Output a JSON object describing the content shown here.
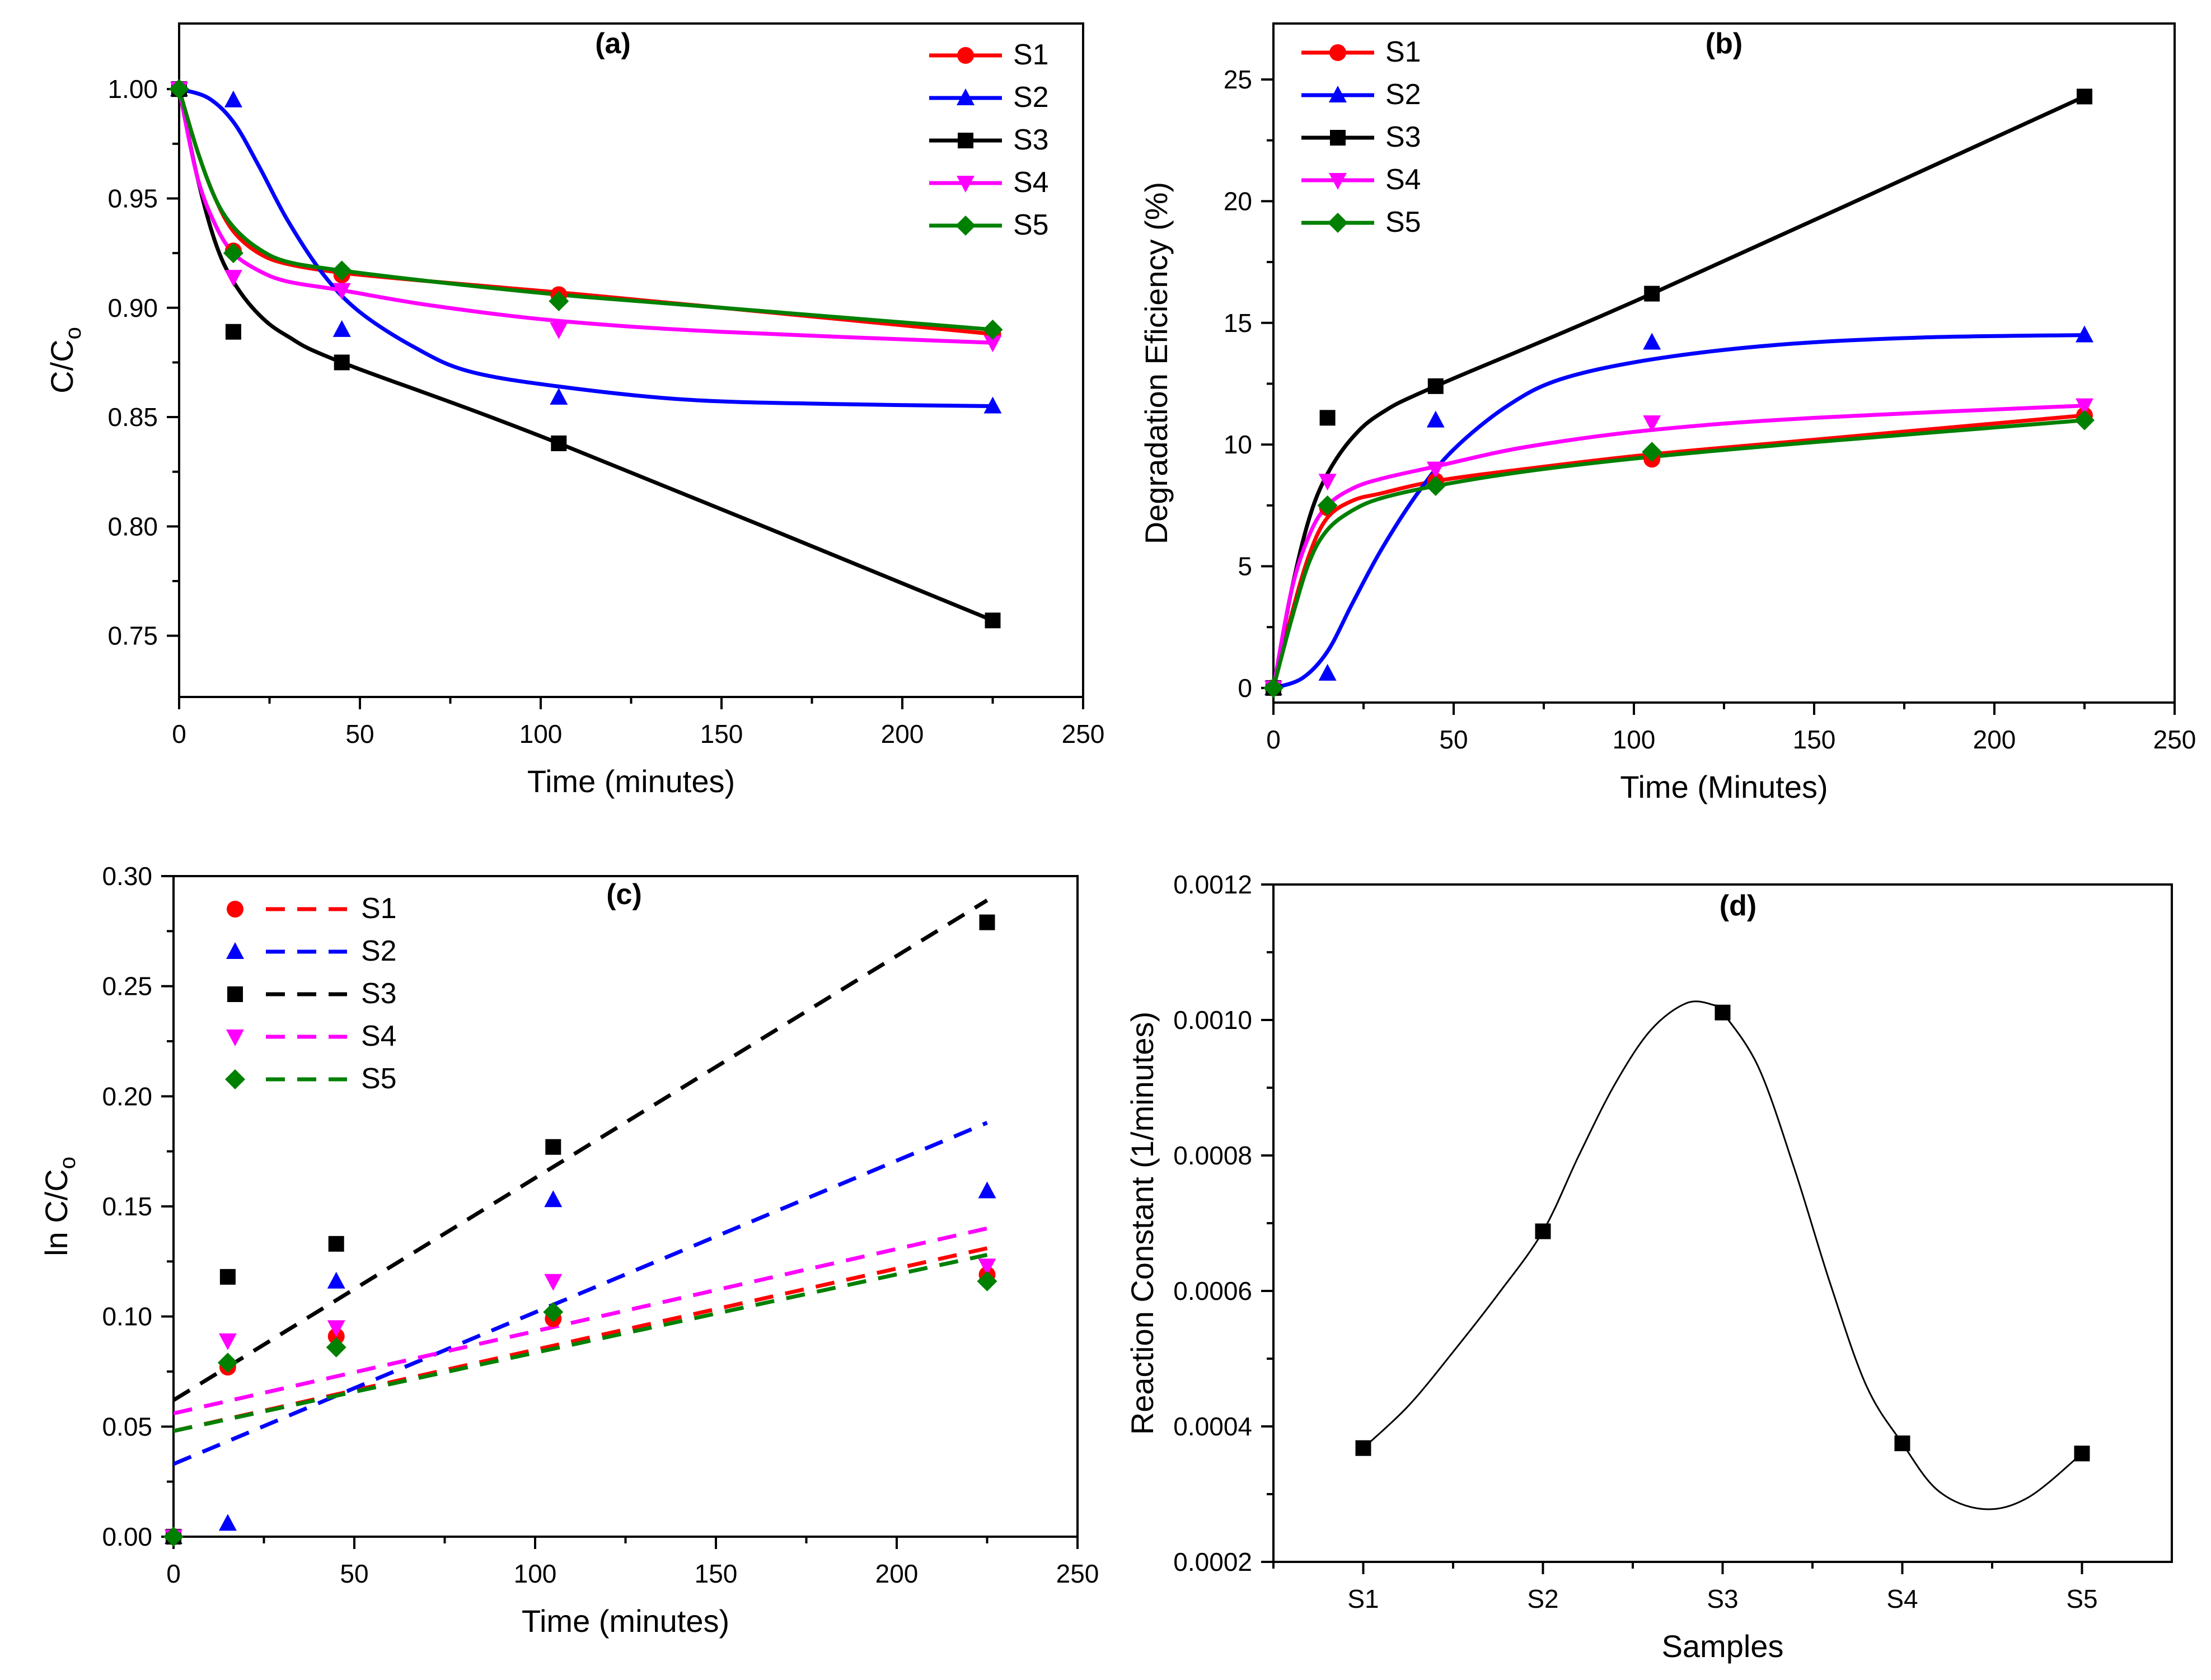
{
  "chart_data": [
    {
      "id": "a",
      "type": "line",
      "title": "(a)",
      "xlabel": "Time (minutes)",
      "ylabel": "C/C",
      "ylabel_sub": "o",
      "xlim": [
        0,
        250
      ],
      "ylim": [
        0.722,
        1.03
      ],
      "xticks": [
        0,
        50,
        100,
        150,
        200,
        250
      ],
      "xtick_labels": [
        "0",
        "50",
        "100",
        "150",
        "200",
        "250"
      ],
      "yticks": [
        0.75,
        0.8,
        0.85,
        0.9,
        0.95,
        1.0
      ],
      "ytick_labels": [
        "0.75",
        "0.80",
        "0.85",
        "0.90",
        "0.95",
        "1.00"
      ],
      "legend": "top-right",
      "series": [
        {
          "name": "S1",
          "color": "#ff0000",
          "marker": "circle",
          "x": [
            0,
            15,
            45,
            105,
            225
          ],
          "y": [
            1.0,
            0.926,
            0.915,
            0.906,
            0.888
          ],
          "fit": [
            [
              0,
              1.0
            ],
            [
              5,
              0.972
            ],
            [
              10,
              0.95
            ],
            [
              15,
              0.935
            ],
            [
              22,
              0.925
            ],
            [
              30,
              0.92
            ],
            [
              45,
              0.916
            ],
            [
              70,
              0.912
            ],
            [
              105,
              0.907
            ],
            [
              150,
              0.9
            ],
            [
              225,
              0.888
            ]
          ]
        },
        {
          "name": "S2",
          "color": "#0000ff",
          "marker": "triangle-up",
          "x": [
            0,
            15,
            45,
            105,
            225
          ],
          "y": [
            1.0,
            0.995,
            0.89,
            0.859,
            0.855
          ],
          "fit": [
            [
              0,
              1.0
            ],
            [
              8,
              0.996
            ],
            [
              15,
              0.985
            ],
            [
              22,
              0.965
            ],
            [
              30,
              0.94
            ],
            [
              40,
              0.915
            ],
            [
              50,
              0.898
            ],
            [
              65,
              0.882
            ],
            [
              80,
              0.871
            ],
            [
              105,
              0.864
            ],
            [
              140,
              0.858
            ],
            [
              180,
              0.856
            ],
            [
              225,
              0.855
            ]
          ]
        },
        {
          "name": "S3",
          "color": "#000000",
          "marker": "square",
          "x": [
            0,
            15,
            45,
            105,
            225
          ],
          "y": [
            1.0,
            0.889,
            0.875,
            0.838,
            0.757
          ],
          "fit": [
            [
              0,
              1.0
            ],
            [
              5,
              0.96
            ],
            [
              10,
              0.93
            ],
            [
              15,
              0.912
            ],
            [
              22,
              0.897
            ],
            [
              30,
              0.887
            ],
            [
              45,
              0.875
            ],
            [
              105,
              0.838
            ],
            [
              225,
              0.757
            ]
          ]
        },
        {
          "name": "S4",
          "color": "#ff00ff",
          "marker": "triangle-down",
          "x": [
            0,
            15,
            45,
            105,
            225
          ],
          "y": [
            1.0,
            0.914,
            0.908,
            0.89,
            0.884
          ],
          "fit": [
            [
              0,
              1.0
            ],
            [
              5,
              0.96
            ],
            [
              10,
              0.938
            ],
            [
              15,
              0.925
            ],
            [
              22,
              0.917
            ],
            [
              30,
              0.912
            ],
            [
              45,
              0.908
            ],
            [
              70,
              0.901
            ],
            [
              105,
              0.894
            ],
            [
              150,
              0.889
            ],
            [
              225,
              0.884
            ]
          ]
        },
        {
          "name": "S5",
          "color": "#008000",
          "marker": "diamond",
          "x": [
            0,
            15,
            45,
            105,
            225
          ],
          "y": [
            1.0,
            0.925,
            0.917,
            0.903,
            0.89
          ],
          "fit": [
            [
              0,
              1.0
            ],
            [
              5,
              0.972
            ],
            [
              10,
              0.95
            ],
            [
              15,
              0.937
            ],
            [
              22,
              0.927
            ],
            [
              30,
              0.921
            ],
            [
              45,
              0.917
            ],
            [
              70,
              0.912
            ],
            [
              105,
              0.906
            ],
            [
              150,
              0.9
            ],
            [
              225,
              0.89
            ]
          ]
        }
      ]
    },
    {
      "id": "b",
      "type": "line",
      "title": "(b)",
      "xlabel": "Time (Minutes)",
      "ylabel": "Degradation Eficiency (%)",
      "xlim": [
        0,
        250
      ],
      "ylim": [
        -0.6,
        27.3
      ],
      "xticks": [
        0,
        50,
        100,
        150,
        200,
        250
      ],
      "xtick_labels": [
        "0",
        "50",
        "100",
        "150",
        "200",
        "250"
      ],
      "yticks": [
        0,
        5,
        10,
        15,
        20,
        25
      ],
      "ytick_labels": [
        "0",
        "5",
        "10",
        "15",
        "20",
        "25"
      ],
      "legend": "top-left",
      "series": [
        {
          "name": "S1",
          "color": "#ff0000",
          "marker": "circle",
          "x": [
            0,
            15,
            45,
            105,
            225
          ],
          "y": [
            0,
            7.4,
            8.5,
            9.4,
            11.2
          ],
          "fit": [
            [
              0,
              0
            ],
            [
              5,
              3.0
            ],
            [
              10,
              5.5
            ],
            [
              15,
              7.0
            ],
            [
              22,
              7.7
            ],
            [
              30,
              8.0
            ],
            [
              45,
              8.5
            ],
            [
              70,
              9.0
            ],
            [
              105,
              9.6
            ],
            [
              150,
              10.2
            ],
            [
              225,
              11.2
            ]
          ]
        },
        {
          "name": "S2",
          "color": "#0000ff",
          "marker": "triangle-up",
          "x": [
            0,
            15,
            45,
            105,
            225
          ],
          "y": [
            0,
            0.6,
            11.0,
            14.2,
            14.5
          ],
          "fit": [
            [
              0,
              0
            ],
            [
              8,
              0.4
            ],
            [
              15,
              1.5
            ],
            [
              22,
              3.5
            ],
            [
              30,
              5.7
            ],
            [
              40,
              8.0
            ],
            [
              50,
              9.8
            ],
            [
              65,
              11.6
            ],
            [
              80,
              12.7
            ],
            [
              105,
              13.5
            ],
            [
              140,
              14.1
            ],
            [
              180,
              14.4
            ],
            [
              225,
              14.5
            ]
          ]
        },
        {
          "name": "S3",
          "color": "#000000",
          "marker": "square",
          "x": [
            0,
            15,
            45,
            105,
            225
          ],
          "y": [
            0,
            11.1,
            12.4,
            16.2,
            24.3
          ],
          "fit": [
            [
              0,
              0
            ],
            [
              5,
              4.0
            ],
            [
              10,
              7.0
            ],
            [
              15,
              8.8
            ],
            [
              22,
              10.3
            ],
            [
              30,
              11.3
            ],
            [
              45,
              12.4
            ],
            [
              105,
              16.2
            ],
            [
              225,
              24.3
            ]
          ]
        },
        {
          "name": "S4",
          "color": "#ff00ff",
          "marker": "triangle-down",
          "x": [
            0,
            15,
            45,
            105,
            225
          ],
          "y": [
            0,
            8.5,
            9.0,
            10.9,
            11.6
          ],
          "fit": [
            [
              0,
              0
            ],
            [
              5,
              4.0
            ],
            [
              10,
              6.3
            ],
            [
              15,
              7.5
            ],
            [
              22,
              8.2
            ],
            [
              30,
              8.6
            ],
            [
              45,
              9.1
            ],
            [
              70,
              9.9
            ],
            [
              105,
              10.6
            ],
            [
              150,
              11.1
            ],
            [
              225,
              11.6
            ]
          ]
        },
        {
          "name": "S5",
          "color": "#008000",
          "marker": "diamond",
          "x": [
            0,
            15,
            45,
            105,
            225
          ],
          "y": [
            0,
            7.5,
            8.3,
            9.7,
            11.0
          ],
          "fit": [
            [
              0,
              0
            ],
            [
              5,
              2.8
            ],
            [
              10,
              5.2
            ],
            [
              15,
              6.5
            ],
            [
              22,
              7.3
            ],
            [
              30,
              7.8
            ],
            [
              45,
              8.3
            ],
            [
              70,
              8.9
            ],
            [
              105,
              9.5
            ],
            [
              150,
              10.1
            ],
            [
              225,
              11.0
            ]
          ]
        }
      ]
    },
    {
      "id": "c",
      "type": "scatter",
      "title": "(c)",
      "xlabel": "Time (minutes)",
      "ylabel": "ln C/C",
      "ylabel_sub": "o",
      "xlim": [
        0,
        250
      ],
      "ylim": [
        0,
        0.3
      ],
      "xticks": [
        0,
        50,
        100,
        150,
        200,
        250
      ],
      "xtick_labels": [
        "0",
        "50",
        "100",
        "150",
        "200",
        "250"
      ],
      "yticks": [
        0.0,
        0.05,
        0.1,
        0.15,
        0.2,
        0.25,
        0.3
      ],
      "ytick_labels": [
        "0.00",
        "0.05",
        "0.10",
        "0.15",
        "0.20",
        "0.25",
        "0.30"
      ],
      "legend": "top-left",
      "series": [
        {
          "name": "S1",
          "color": "#ff0000",
          "marker": "circle",
          "x": [
            0,
            15,
            45,
            105,
            225
          ],
          "y": [
            0,
            0.077,
            0.091,
            0.099,
            0.119
          ],
          "fit_line": [
            [
              0,
              0.048
            ],
            [
              225,
              0.131
            ]
          ]
        },
        {
          "name": "S2",
          "color": "#0000ff",
          "marker": "triangle-up",
          "x": [
            0,
            15,
            45,
            105,
            225
          ],
          "y": [
            0,
            0.006,
            0.116,
            0.153,
            0.157
          ],
          "fit_line": [
            [
              0,
              0.033
            ],
            [
              225,
              0.188
            ]
          ]
        },
        {
          "name": "S3",
          "color": "#000000",
          "marker": "square",
          "x": [
            0,
            15,
            45,
            105,
            225
          ],
          "y": [
            0,
            0.118,
            0.133,
            0.177,
            0.279
          ],
          "fit_line": [
            [
              0,
              0.062
            ],
            [
              225,
              0.289
            ]
          ]
        },
        {
          "name": "S4",
          "color": "#ff00ff",
          "marker": "triangle-down",
          "x": [
            0,
            15,
            45,
            105,
            225
          ],
          "y": [
            0,
            0.089,
            0.095,
            0.116,
            0.123
          ],
          "fit_line": [
            [
              0,
              0.056
            ],
            [
              225,
              0.14
            ]
          ]
        },
        {
          "name": "S5",
          "color": "#008000",
          "marker": "diamond",
          "x": [
            0,
            15,
            45,
            105,
            225
          ],
          "y": [
            0,
            0.079,
            0.086,
            0.102,
            0.116
          ],
          "fit_line": [
            [
              0,
              0.048
            ],
            [
              225,
              0.128
            ]
          ]
        }
      ]
    },
    {
      "id": "d",
      "type": "line",
      "title": "(d)",
      "xlabel": "Samples",
      "ylabel": "Reaction Constant (1/minutes)",
      "categories": [
        "S1",
        "S2",
        "S3",
        "S4",
        "S5"
      ],
      "xlim": [
        0.5,
        5.5
      ],
      "ylim": [
        0.0002,
        0.0012
      ],
      "yticks": [
        0.0002,
        0.0004,
        0.0006,
        0.0008,
        0.001,
        0.0012
      ],
      "ytick_labels": [
        "0.0002",
        "0.0004",
        "0.0006",
        "0.0008",
        "0.0010",
        "0.0012"
      ],
      "legend": "none",
      "series": [
        {
          "name": "Reaction Constant",
          "color": "#000000",
          "marker": "square",
          "x": [
            1,
            2,
            3,
            4,
            5
          ],
          "y": [
            0.000368,
            0.000688,
            0.001011,
            0.000375,
            0.00036
          ],
          "fit": [
            [
              1,
              0.000368
            ],
            [
              1.25,
              0.00043
            ],
            [
              1.5,
              0.00051
            ],
            [
              1.75,
              0.000595
            ],
            [
              2,
              0.000688
            ],
            [
              2.2,
              0.0008
            ],
            [
              2.4,
              0.000905
            ],
            [
              2.6,
              0.000985
            ],
            [
              2.8,
              0.001025
            ],
            [
              2.95,
              0.001022
            ],
            [
              3,
              0.001011
            ],
            [
              3.2,
              0.00093
            ],
            [
              3.4,
              0.00078
            ],
            [
              3.6,
              0.00061
            ],
            [
              3.8,
              0.00046
            ],
            [
              4,
              0.000375
            ],
            [
              4.2,
              0.000305
            ],
            [
              4.45,
              0.000278
            ],
            [
              4.7,
              0.000295
            ],
            [
              5,
              0.00036
            ]
          ]
        }
      ]
    }
  ]
}
